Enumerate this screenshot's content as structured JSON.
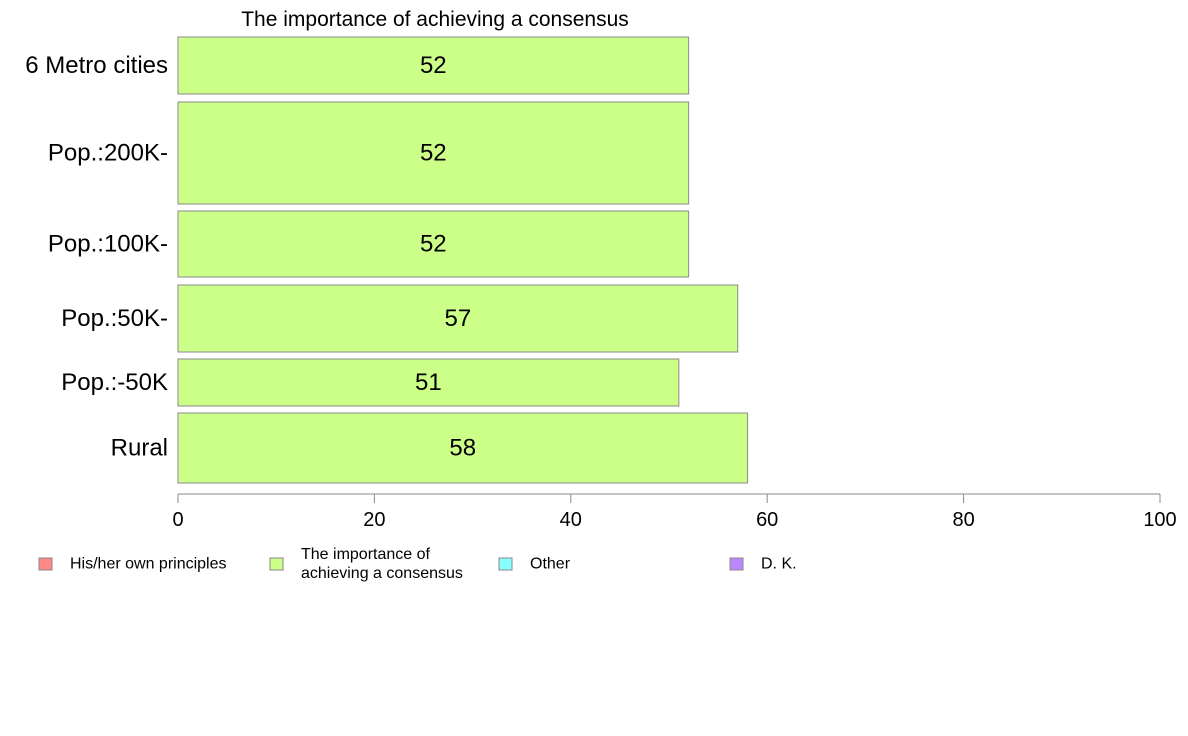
{
  "chart_data": {
    "type": "bar",
    "orientation": "horizontal",
    "title": "The importance of achieving a consensus",
    "categories": [
      "6 Metro cities",
      "Pop.:200K-",
      "Pop.:100K-",
      "Pop.:50K-",
      "Pop.:-50K",
      "Rural"
    ],
    "values": [
      52,
      52,
      52,
      57,
      51,
      58
    ],
    "xlim": [
      0,
      100
    ],
    "xticks": [
      0,
      20,
      40,
      60,
      80,
      100
    ],
    "bar_color": "#ccff88",
    "grid": false,
    "legend_position": "bottom",
    "legend": [
      {
        "label_lines": [
          "His/her own principles"
        ],
        "color": "#ff8888"
      },
      {
        "label_lines": [
          "The importance of",
          "achieving a consensus"
        ],
        "color": "#ccff88"
      },
      {
        "label_lines": [
          "Other"
        ],
        "color": "#88ffff"
      },
      {
        "label_lines": [
          "D. K."
        ],
        "color": "#bb88ff"
      }
    ]
  }
}
